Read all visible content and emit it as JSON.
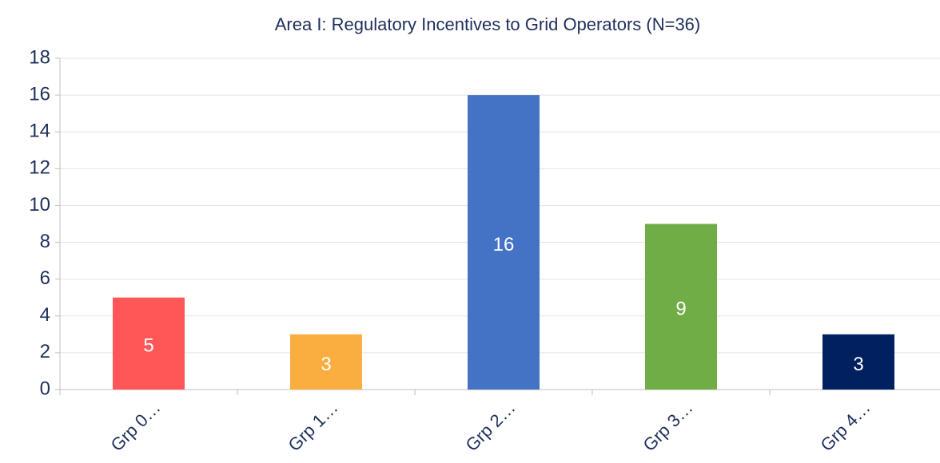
{
  "chart_data": {
    "type": "bar",
    "title": "Area I: Regulatory Incentives to Grid Operators (N=36)",
    "categories": [
      "Grp 0…",
      "Grp 1…",
      "Grp 2…",
      "Grp 3…",
      "Grp 4…"
    ],
    "values": [
      5,
      3,
      16,
      9,
      3
    ],
    "colors": [
      "#ff5757",
      "#f9ae3f",
      "#4472c4",
      "#70ad47",
      "#002060"
    ],
    "ylim": [
      0,
      18
    ],
    "yticks": [
      0,
      2,
      4,
      6,
      8,
      10,
      12,
      14,
      16,
      18
    ],
    "grid": true
  }
}
